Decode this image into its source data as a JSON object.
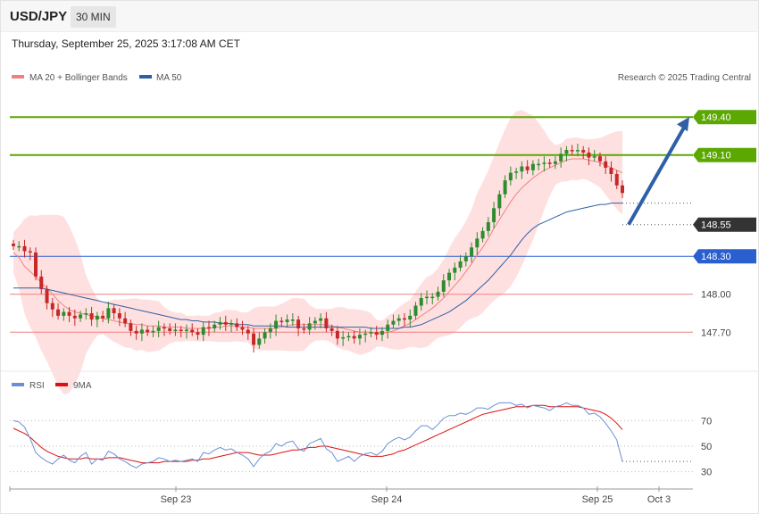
{
  "header": {
    "symbol": "USD/JPY",
    "interval": "30 MIN",
    "datetime": "Thursday, September 25, 2025 3:17:08 AM CET"
  },
  "legend": {
    "ma20": "MA 20 + Bollinger Bands",
    "ma50": "MA 50",
    "credit": "Research © 2025 Trading Central",
    "rsi": "RSI",
    "rsi_ma": "9MA"
  },
  "colors": {
    "up": "#2e8b2e",
    "down": "#c62828",
    "ma20": "#f28080",
    "band_fill": "#ffd6d6",
    "ma50": "#2f5fa7",
    "resistance": "#5aa800",
    "support_line": "#f08080",
    "pivot": "#2a5fd0",
    "current": "#333333",
    "arrow": "#2f5fa7",
    "rsi": "#6b8fd6",
    "rsi_ma": "#dd1111"
  },
  "chart_data": [
    {
      "type": "candlestick",
      "title": "USD/JPY 30 MIN",
      "ylim": [
        147.42,
        149.62
      ],
      "x_labels": [
        "Sep 23",
        "Sep 24",
        "Sep 25",
        "Oct 3"
      ],
      "levels": [
        {
          "value": 149.4,
          "label": "149.40",
          "kind": "resistance"
        },
        {
          "value": 149.1,
          "label": "149.10",
          "kind": "resistance"
        },
        {
          "value": 148.55,
          "label": "148.55",
          "kind": "current"
        },
        {
          "value": 148.3,
          "label": "148.30",
          "kind": "pivot"
        },
        {
          "value": 148.0,
          "label": "148.00",
          "kind": "support"
        },
        {
          "value": 147.7,
          "label": "147.70",
          "kind": "support"
        }
      ],
      "target_arrow": {
        "from": 148.55,
        "to": 149.4
      },
      "close_series": [
        148.38,
        148.38,
        148.34,
        148.33,
        148.14,
        148.04,
        147.93,
        147.88,
        147.83,
        147.86,
        147.83,
        147.81,
        147.84,
        147.85,
        147.8,
        147.83,
        147.81,
        147.89,
        147.85,
        147.81,
        147.77,
        147.71,
        147.69,
        147.72,
        147.7,
        147.71,
        147.74,
        147.73,
        147.71,
        147.72,
        147.71,
        147.72,
        147.7,
        147.68,
        147.74,
        147.73,
        147.76,
        147.78,
        147.76,
        147.77,
        147.74,
        147.72,
        147.69,
        147.6,
        147.65,
        147.7,
        147.73,
        147.79,
        147.78,
        147.8,
        147.8,
        147.73,
        147.72,
        147.77,
        147.79,
        147.81,
        147.73,
        147.71,
        147.65,
        147.66,
        147.67,
        147.65,
        147.68,
        147.69,
        147.7,
        147.68,
        147.71,
        147.76,
        147.79,
        147.81,
        147.8,
        147.83,
        147.91,
        147.97,
        147.98,
        147.98,
        148.02,
        148.11,
        148.17,
        148.21,
        148.26,
        148.3,
        148.37,
        148.44,
        148.5,
        148.57,
        148.68,
        148.79,
        148.9,
        148.96,
        148.97,
        149.01,
        148.98,
        149.03,
        149.03,
        149.04,
        149.03,
        149.05,
        149.11,
        149.14,
        149.13,
        149.14,
        149.12,
        149.08,
        149.09,
        149.05,
        149.0,
        148.95,
        148.86,
        148.8
      ],
      "ma20_series": [
        148.33,
        148.29,
        148.22,
        148.18,
        148.14,
        148.09,
        148.05,
        148.0,
        147.95,
        147.91,
        147.88,
        147.86,
        147.85,
        147.84,
        147.83,
        147.82,
        147.81,
        147.8,
        147.79,
        147.78,
        147.77,
        147.77,
        147.76,
        147.76,
        147.75,
        147.75,
        147.75,
        147.74,
        147.74,
        147.74,
        147.74,
        147.73,
        147.73,
        147.73,
        147.73,
        147.73,
        147.74,
        147.74,
        147.75,
        147.75,
        147.75,
        147.74,
        147.74,
        147.73,
        147.73,
        147.73,
        147.73,
        147.73,
        147.74,
        147.75,
        147.76,
        147.76,
        147.76,
        147.76,
        147.76,
        147.76,
        147.76,
        147.75,
        147.74,
        147.73,
        147.72,
        147.71,
        147.7,
        147.7,
        147.7,
        147.69,
        147.69,
        147.7,
        147.71,
        147.73,
        147.75,
        147.77,
        147.8,
        147.83,
        147.86,
        147.89,
        147.93,
        147.97,
        148.02,
        148.07,
        148.12,
        148.18,
        148.24,
        148.31,
        148.37,
        148.44,
        148.52,
        148.59,
        148.66,
        148.73,
        148.79,
        148.84,
        148.88,
        148.92,
        148.95,
        148.98,
        149.0,
        149.02,
        149.04,
        149.06,
        149.07,
        149.07,
        149.07,
        149.06,
        149.05,
        149.04,
        149.02,
        149.0,
        148.98,
        148.96
      ],
      "ma50_series": [
        148.05,
        148.05,
        148.05,
        148.05,
        148.05,
        148.05,
        148.04,
        148.03,
        148.02,
        148.01,
        148.0,
        147.99,
        147.98,
        147.97,
        147.96,
        147.95,
        147.94,
        147.93,
        147.92,
        147.91,
        147.9,
        147.89,
        147.88,
        147.87,
        147.86,
        147.85,
        147.84,
        147.83,
        147.82,
        147.81,
        147.8,
        147.8,
        147.79,
        147.79,
        147.78,
        147.78,
        147.78,
        147.77,
        147.77,
        147.77,
        147.76,
        147.76,
        147.76,
        147.75,
        147.75,
        147.75,
        147.75,
        147.75,
        147.75,
        147.74,
        147.74,
        147.74,
        147.74,
        147.74,
        147.74,
        147.74,
        147.74,
        147.74,
        147.74,
        147.74,
        147.74,
        147.74,
        147.74,
        147.74,
        147.73,
        147.73,
        147.73,
        147.73,
        147.73,
        147.73,
        147.74,
        147.74,
        147.75,
        147.76,
        147.78,
        147.8,
        147.82,
        147.84,
        147.86,
        147.89,
        147.92,
        147.95,
        147.99,
        148.03,
        148.07,
        148.11,
        148.16,
        148.21,
        148.26,
        148.31,
        148.37,
        148.43,
        148.48,
        148.52,
        148.55,
        148.57,
        148.59,
        148.61,
        148.63,
        148.65,
        148.66,
        148.67,
        148.68,
        148.69,
        148.7,
        148.71,
        148.71,
        148.72,
        148.72,
        148.72
      ]
    },
    {
      "type": "line",
      "title": "RSI",
      "ylim": [
        22,
        92
      ],
      "yticks": [
        30,
        50,
        70
      ],
      "series": [
        {
          "name": "RSI",
          "values": [
            70,
            69,
            65,
            56,
            45,
            41,
            38,
            36,
            40,
            43,
            39,
            37,
            42,
            45,
            36,
            40,
            39,
            46,
            44,
            40,
            38,
            35,
            33,
            36,
            37,
            38,
            41,
            40,
            38,
            39,
            38,
            39,
            40,
            38,
            45,
            44,
            47,
            49,
            47,
            48,
            45,
            43,
            40,
            34,
            40,
            44,
            46,
            52,
            50,
            53,
            54,
            48,
            46,
            52,
            54,
            56,
            48,
            45,
            38,
            40,
            42,
            38,
            42,
            44,
            45,
            43,
            46,
            52,
            55,
            57,
            55,
            57,
            62,
            66,
            66,
            63,
            67,
            72,
            74,
            74,
            76,
            75,
            77,
            80,
            80,
            79,
            82,
            84,
            84,
            84,
            82,
            83,
            80,
            82,
            81,
            80,
            78,
            81,
            82,
            84,
            82,
            82,
            80,
            75,
            76,
            73,
            68,
            62,
            55,
            38
          ]
        },
        {
          "name": "9MA",
          "values": [
            64,
            62,
            60,
            57,
            53,
            49,
            46,
            44,
            42,
            41,
            40,
            40,
            40,
            41,
            40,
            40,
            40,
            41,
            41,
            41,
            40,
            39,
            38,
            37,
            37,
            37,
            37,
            38,
            38,
            38,
            38,
            38,
            39,
            39,
            40,
            40,
            41,
            42,
            43,
            44,
            45,
            45,
            45,
            44,
            43,
            43,
            43,
            44,
            45,
            46,
            47,
            47,
            48,
            49,
            49,
            50,
            50,
            49,
            48,
            47,
            46,
            45,
            44,
            43,
            42,
            42,
            42,
            43,
            44,
            46,
            47,
            49,
            51,
            53,
            55,
            57,
            59,
            61,
            63,
            65,
            67,
            69,
            71,
            73,
            75,
            76,
            77,
            78,
            79,
            80,
            81,
            81,
            81,
            82,
            82,
            82,
            81,
            81,
            81,
            81,
            81,
            81,
            80,
            79,
            78,
            77,
            75,
            72,
            68,
            63
          ]
        }
      ],
      "current": 38
    }
  ]
}
